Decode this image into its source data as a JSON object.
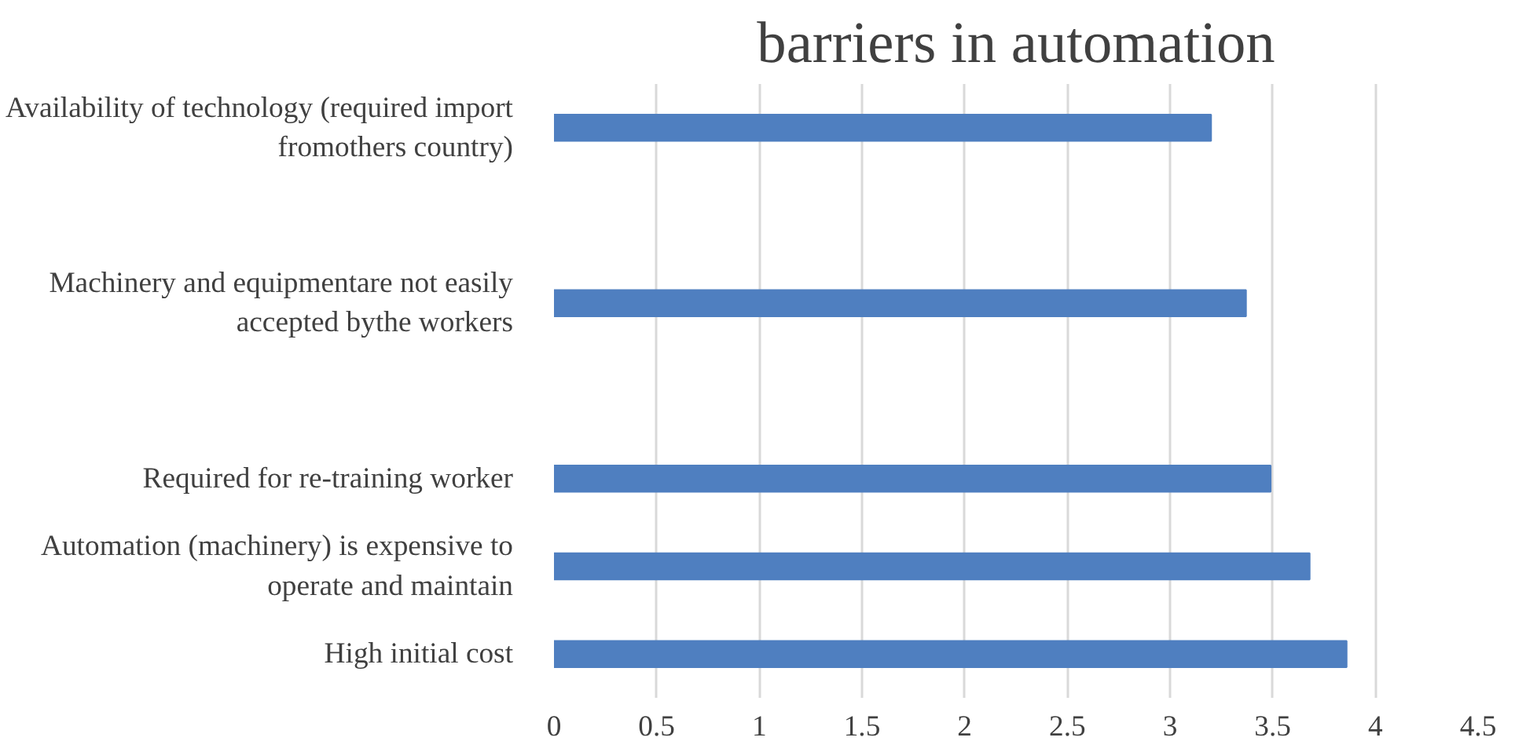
{
  "chart_data": {
    "type": "bar",
    "orientation": "horizontal",
    "title": "barriers in automation",
    "categories": [
      "Availability of technology (required import fromothers country)",
      null,
      "Machinery and equipmentare not easily accepted bythe workers",
      null,
      "Required for re-training worker",
      "Automation (machinery) is expensive to operate and maintain",
      "High initial cost"
    ],
    "values": [
      3.2,
      null,
      3.37,
      null,
      3.49,
      3.68,
      3.86
    ],
    "color": "#4f7fc0",
    "xlim": [
      0,
      4.5
    ],
    "xticks": [
      0,
      0.5,
      1,
      1.5,
      2,
      2.5,
      3,
      3.5,
      4,
      4.5
    ],
    "grid": "x"
  }
}
